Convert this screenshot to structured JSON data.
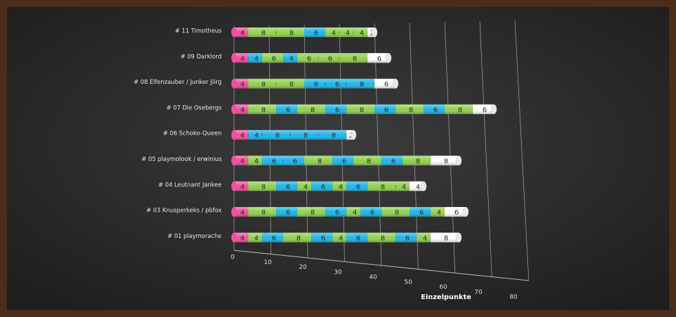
{
  "chart_data": {
    "type": "bar",
    "orientation": "horizontal",
    "stacked": true,
    "xlabel": "Einzelpunkte",
    "categories": [
      "# 11 Timotheus",
      "# 09 Darklord",
      "# 08 Elfenzauber / Junker Jörg",
      "# 07 Die Osebergs",
      "# 06 Schoko-Queen",
      "# 05 playmolook / erwinius",
      "# 04 Leutnant Jankee",
      "# 03 Knusperkeks / pbfox",
      "# 01 playmorache"
    ],
    "series": [
      {
        "color": "#f0509e",
        "values": [
          4,
          4,
          4,
          4,
          4,
          4,
          4,
          4,
          4
        ]
      },
      {
        "color": "#92d050",
        "values": [
          8,
          0,
          8,
          8,
          0,
          4,
          8,
          8,
          4
        ]
      },
      {
        "color": "#1fb5e8",
        "values": [
          0,
          4,
          0,
          6,
          4,
          6,
          6,
          6,
          6
        ]
      },
      {
        "color": "#92d050",
        "values": [
          8,
          6,
          8,
          8,
          0,
          0,
          4,
          8,
          8
        ]
      },
      {
        "color": "#1fb5e8",
        "values": [
          6,
          4,
          6,
          6,
          8,
          6,
          6,
          6,
          6
        ]
      },
      {
        "color": "#92d050",
        "values": [
          4,
          6,
          0,
          8,
          0,
          8,
          4,
          4,
          4
        ]
      },
      {
        "color": "#1fb5e8",
        "values": [
          0,
          0,
          6,
          6,
          8,
          6,
          6,
          6,
          6
        ]
      },
      {
        "color": "#92d050",
        "values": [
          4,
          6,
          0,
          8,
          0,
          8,
          8,
          8,
          8
        ]
      },
      {
        "color": "#1fb5e8",
        "values": [
          0,
          0,
          8,
          6,
          8,
          6,
          0,
          6,
          6
        ]
      },
      {
        "color": "#92d050",
        "values": [
          4,
          8,
          0,
          8,
          0,
          8,
          4,
          4,
          4
        ]
      },
      {
        "color": "#ffffff",
        "values": [
          2,
          6,
          6,
          6,
          2,
          8,
          4,
          6,
          8
        ]
      }
    ],
    "xlim": [
      0,
      80
    ],
    "xticks": [
      0,
      10,
      20,
      30,
      40,
      50,
      60,
      70,
      80
    ],
    "grid": true
  }
}
